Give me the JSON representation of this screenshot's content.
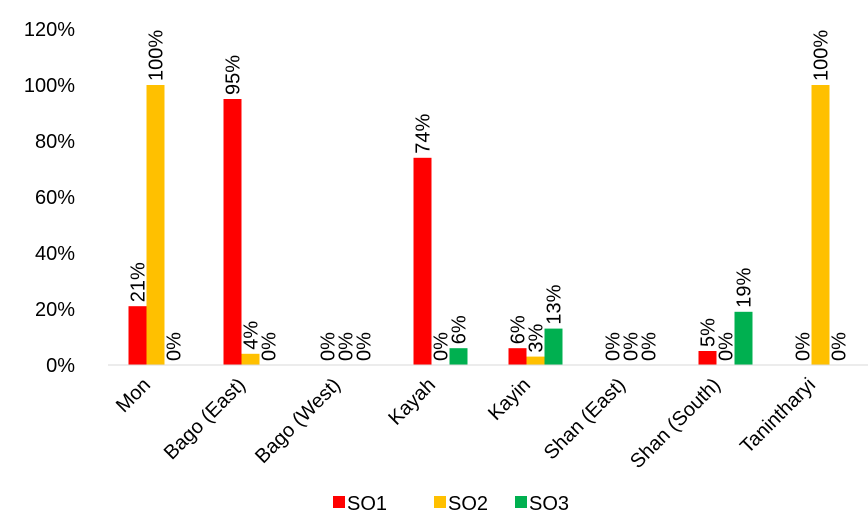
{
  "chart_data": {
    "type": "bar",
    "categories": [
      "Mon",
      "Bago (East)",
      "Bago (West)",
      "Kayah",
      "Kayin",
      "Shan (East)",
      "Shan (South)",
      "Tanintharyi"
    ],
    "series": [
      {
        "name": "SO1",
        "color": "#ff0000",
        "values": [
          21,
          95,
          null,
          74,
          6,
          null,
          5,
          0
        ],
        "labels": [
          "21%",
          "95%",
          "0%",
          "",
          "6%",
          "0%",
          "5%",
          "0%"
        ]
      },
      {
        "name": "SO2",
        "color": "#ffc000",
        "values": [
          100,
          4,
          null,
          0,
          3,
          null,
          0,
          100
        ],
        "labels": [
          "100%",
          "4%",
          "0%",
          "0%",
          "3%",
          "0%",
          "0%",
          "100%"
        ]
      },
      {
        "name": "SO3",
        "color": "#00b050",
        "values": [
          0,
          0,
          null,
          6,
          13,
          null,
          19,
          0
        ],
        "labels": [
          "0%",
          "0%",
          "0%",
          "6%",
          "13%",
          "0%",
          "19%",
          "0%"
        ]
      }
    ],
    "kayah_so1_label": "74%",
    "ylim": [
      0,
      120
    ],
    "yticks": [
      "0%",
      "20%",
      "40%",
      "60%",
      "80%",
      "100%",
      "120%"
    ],
    "grid": false,
    "legend_position": "bottom"
  }
}
